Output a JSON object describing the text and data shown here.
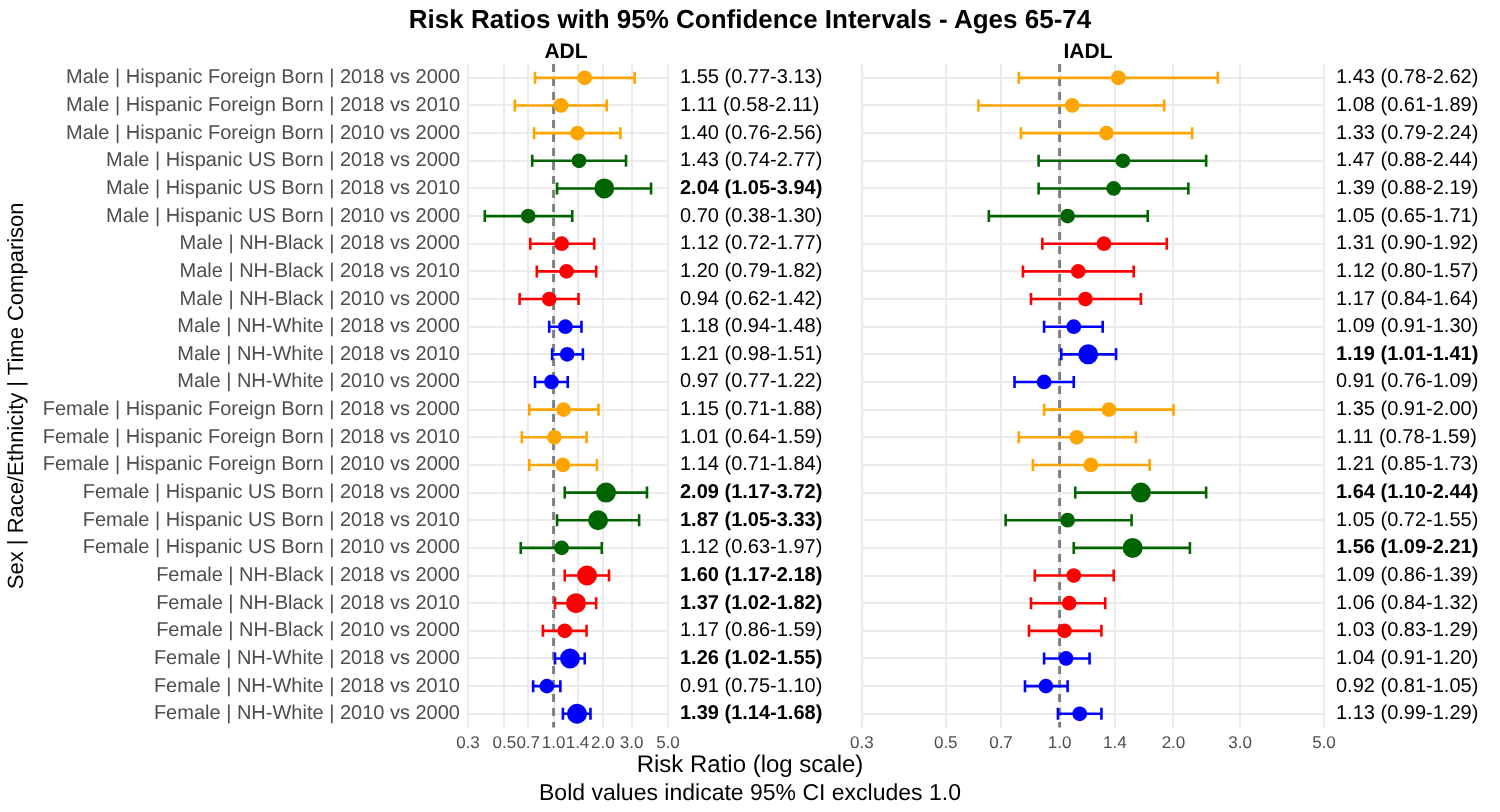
{
  "chart_data": [
    {
      "type": "scatter",
      "title": "Risk Ratios with 95% Confidence Intervals - Ages 65-74",
      "subtitle": "ADL",
      "ylabel": "Sex | Race/Ethnicity | Time Comparison",
      "xlabel": "Risk Ratio (log scale)",
      "annotations": [
        "Bold values indicate 95% CI excludes 1.0"
      ],
      "categories": [
        "Male | Hispanic Foreign Born | 2018 vs 2000",
        "Male | Hispanic Foreign Born | 2018 vs 2010",
        "Male | Hispanic Foreign Born | 2010 vs 2000",
        "Male | Hispanic US Born | 2018 vs 2000",
        "Male | Hispanic US Born | 2018 vs 2010",
        "Male | Hispanic US Born | 2010 vs 2000",
        "Male | NH-Black | 2018 vs 2000",
        "Male | NH-Black | 2018 vs 2010",
        "Male | NH-Black | 2010 vs 2000",
        "Male | NH-White | 2018 vs 2000",
        "Male | NH-White | 2018 vs 2010",
        "Male | NH-White | 2010 vs 2000",
        "Female | Hispanic Foreign Born | 2018 vs 2000",
        "Female | Hispanic Foreign Born | 2018 vs 2010",
        "Female | Hispanic Foreign Born | 2010 vs 2000",
        "Female | Hispanic US Born | 2018 vs 2000",
        "Female | Hispanic US Born | 2018 vs 2010",
        "Female | Hispanic US Born | 2010 vs 2000",
        "Female | NH-Black | 2018 vs 2000",
        "Female | NH-Black | 2018 vs 2010",
        "Female | NH-Black | 2010 vs 2000",
        "Female | NH-White | 2018 vs 2000",
        "Female | NH-White | 2018 vs 2010",
        "Female | NH-White | 2010 vs 2000"
      ],
      "orientation": "horizontal",
      "values": [
        1.55,
        1.11,
        1.4,
        1.43,
        2.04,
        0.7,
        1.12,
        1.2,
        0.94,
        1.18,
        1.21,
        0.97,
        1.15,
        1.01,
        1.14,
        2.09,
        1.87,
        1.12,
        1.6,
        1.37,
        1.17,
        1.26,
        0.91,
        1.39
      ],
      "sizes": [
        0.5,
        0.5,
        0.5,
        0.5,
        1,
        0.5,
        0.5,
        0.5,
        0.5,
        0.5,
        0.5,
        0.5,
        0.5,
        0.5,
        0.5,
        1,
        1,
        0.5,
        1,
        1,
        0.5,
        1,
        0.5,
        1
      ],
      "errors": [
        [
          0.77,
          3.13
        ],
        [
          0.58,
          2.11
        ],
        [
          0.76,
          2.56
        ],
        [
          0.74,
          2.77
        ],
        [
          1.05,
          3.94
        ],
        [
          0.38,
          1.3
        ],
        [
          0.72,
          1.77
        ],
        [
          0.79,
          1.82
        ],
        [
          0.62,
          1.42
        ],
        [
          0.94,
          1.48
        ],
        [
          0.98,
          1.51
        ],
        [
          0.77,
          1.22
        ],
        [
          0.71,
          1.88
        ],
        [
          0.64,
          1.59
        ],
        [
          0.71,
          1.84
        ],
        [
          1.17,
          3.72
        ],
        [
          1.05,
          3.33
        ],
        [
          0.63,
          1.97
        ],
        [
          1.17,
          2.18
        ],
        [
          1.02,
          1.82
        ],
        [
          0.86,
          1.59
        ],
        [
          1.02,
          1.55
        ],
        [
          0.75,
          1.1
        ],
        [
          1.14,
          1.68
        ]
      ],
      "value_labels": [
        "1.55 (0.77-3.13)",
        "1.11 (0.58-2.11)",
        "1.40 (0.76-2.56)",
        "1.43 (0.74-2.77)",
        "2.04 (1.05-3.94)",
        "0.70 (0.38-1.30)",
        "1.12 (0.72-1.77)",
        "1.20 (0.79-1.82)",
        "0.94 (0.62-1.42)",
        "1.18 (0.94-1.48)",
        "1.21 (0.98-1.51)",
        "0.97 (0.77-1.22)",
        "1.15 (0.71-1.88)",
        "1.01 (0.64-1.59)",
        "1.14 (0.71-1.84)",
        "2.09 (1.17-3.72)",
        "1.87 (1.05-3.33)",
        "1.12 (0.63-1.97)",
        "1.60 (1.17-2.18)",
        "1.37 (1.02-1.82)",
        "1.17 (0.86-1.59)",
        "1.26 (1.02-1.55)",
        "0.91 (0.75-1.10)",
        "1.39 (1.14-1.68)"
      ],
      "colors": [
        "#ffa500",
        "#ffa500",
        "#ffa500",
        "#006400",
        "#006400",
        "#006400",
        "#ff0000",
        "#ff0000",
        "#ff0000",
        "#0000ff",
        "#0000ff",
        "#0000ff",
        "#ffa500",
        "#ffa500",
        "#ffa500",
        "#006400",
        "#006400",
        "#006400",
        "#ff0000",
        "#ff0000",
        "#ff0000",
        "#0000ff",
        "#0000ff",
        "#0000ff"
      ],
      "log": "x",
      "xlim": [
        0.3,
        5
      ],
      "xticks": [
        0.3,
        0.5,
        0.7,
        {
          "value": 1,
          "label": "1.0"
        },
        1.4,
        {
          "value": 2,
          "label": "2.0"
        },
        {
          "value": 3,
          "label": "3.0"
        },
        {
          "value": 5,
          "label": "5.0"
        }
      ],
      "ref_lines": [
        {
          "axis": "x",
          "value": 1,
          "color": "#808080",
          "line_style": "dashed"
        }
      ],
      "grid": true,
      "marker": "circle",
      "legend": false
    },
    {
      "type": "scatter",
      "subtitle": "IADL",
      "categories": [
        null,
        null,
        null,
        null,
        null,
        null,
        null,
        null,
        null,
        null,
        null,
        null,
        null,
        null,
        null,
        null,
        null,
        null,
        null,
        null,
        null,
        null,
        null,
        null
      ],
      "orientation": "horizontal",
      "values": [
        1.43,
        1.08,
        1.33,
        1.47,
        1.39,
        1.05,
        1.31,
        1.12,
        1.17,
        1.09,
        1.19,
        0.91,
        1.35,
        1.11,
        1.21,
        1.64,
        1.05,
        1.56,
        1.09,
        1.06,
        1.03,
        1.04,
        0.92,
        1.13
      ],
      "sizes": [
        0.5,
        0.5,
        0.5,
        0.5,
        0.5,
        0.5,
        0.5,
        0.5,
        0.5,
        0.5,
        1,
        0.5,
        0.5,
        0.5,
        0.5,
        1,
        0.5,
        1,
        0.5,
        0.5,
        0.5,
        0.5,
        0.5,
        0.5
      ],
      "errors": [
        [
          0.78,
          2.62
        ],
        [
          0.61,
          1.89
        ],
        [
          0.79,
          2.24
        ],
        [
          0.88,
          2.44
        ],
        [
          0.88,
          2.19
        ],
        [
          0.65,
          1.71
        ],
        [
          0.9,
          1.92
        ],
        [
          0.8,
          1.57
        ],
        [
          0.84,
          1.64
        ],
        [
          0.91,
          1.3
        ],
        [
          1.01,
          1.41
        ],
        [
          0.76,
          1.09
        ],
        [
          0.91,
          2.0
        ],
        [
          0.78,
          1.59
        ],
        [
          0.85,
          1.73
        ],
        [
          1.1,
          2.44
        ],
        [
          0.72,
          1.55
        ],
        [
          1.09,
          2.21
        ],
        [
          0.86,
          1.39
        ],
        [
          0.84,
          1.32
        ],
        [
          0.83,
          1.29
        ],
        [
          0.91,
          1.2
        ],
        [
          0.81,
          1.05
        ],
        [
          0.99,
          1.29
        ]
      ],
      "value_labels": [
        "1.43 (0.78-2.62)",
        "1.08 (0.61-1.89)",
        "1.33 (0.79-2.24)",
        "1.47 (0.88-2.44)",
        "1.39 (0.88-2.19)",
        "1.05 (0.65-1.71)",
        "1.31 (0.90-1.92)",
        "1.12 (0.80-1.57)",
        "1.17 (0.84-1.64)",
        "1.09 (0.91-1.30)",
        "1.19 (1.01-1.41)",
        "0.91 (0.76-1.09)",
        "1.35 (0.91-2.00)",
        "1.11 (0.78-1.59)",
        "1.21 (0.85-1.73)",
        "1.64 (1.10-2.44)",
        "1.05 (0.72-1.55)",
        "1.56 (1.09-2.21)",
        "1.09 (0.86-1.39)",
        "1.06 (0.84-1.32)",
        "1.03 (0.83-1.29)",
        "1.04 (0.91-1.20)",
        "0.92 (0.81-1.05)",
        "1.13 (0.99-1.29)"
      ],
      "colors": [
        "#ffa500",
        "#ffa500",
        "#ffa500",
        "#006400",
        "#006400",
        "#006400",
        "#ff0000",
        "#ff0000",
        "#ff0000",
        "#0000ff",
        "#0000ff",
        "#0000ff",
        "#ffa500",
        "#ffa500",
        "#ffa500",
        "#006400",
        "#006400",
        "#006400",
        "#ff0000",
        "#ff0000",
        "#ff0000",
        "#0000ff",
        "#0000ff",
        "#0000ff"
      ],
      "log": "x",
      "xlim": [
        0.3,
        5
      ],
      "xticks": [
        0.3,
        0.5,
        0.7,
        {
          "value": 1,
          "label": "1.0"
        },
        1.4,
        {
          "value": 2,
          "label": "2.0"
        },
        {
          "value": 3,
          "label": "3.0"
        },
        {
          "value": 5,
          "label": "5.0"
        }
      ],
      "ref_lines": [
        {
          "axis": "x",
          "value": 1,
          "color": "#808080",
          "line_style": "dashed"
        }
      ],
      "grid": true,
      "marker": "circle",
      "legend": false,
      "tick_labels": "x"
    }
  ]
}
